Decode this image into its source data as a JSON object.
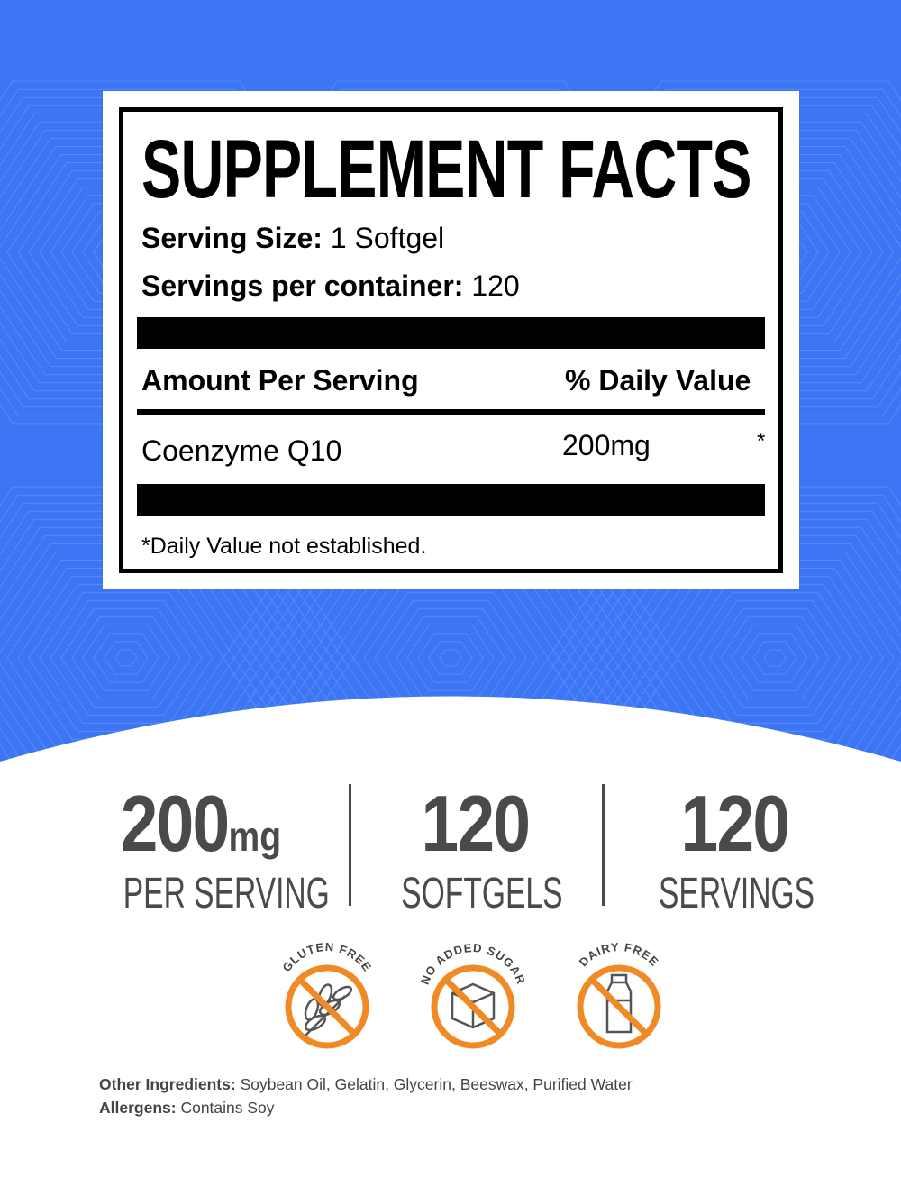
{
  "colors": {
    "background_blue": "#3d76f5",
    "badge_orange": "#f08a24",
    "stat_gray": "#4a4a4a"
  },
  "facts": {
    "title": "SUPPLEMENT FACTS",
    "serving_size_label": "Serving Size:",
    "serving_size_value": "1 Softgel",
    "servings_label": "Servings per container:",
    "servings_value": "120",
    "amount_header": "Amount Per Serving",
    "dv_header": "% Daily Value",
    "ingredient": "Coenzyme Q10",
    "amount": "200mg",
    "dv_mark": "*",
    "footnote": "*Daily Value not established."
  },
  "stats": [
    {
      "value": "200",
      "unit": "mg",
      "label": "PER SERVING"
    },
    {
      "value": "120",
      "unit": "",
      "label": "SOFTGELS"
    },
    {
      "value": "120",
      "unit": "",
      "label": "SERVINGS"
    }
  ],
  "badges": [
    {
      "label": "GLUTEN FREE",
      "icon": "wheat-icon"
    },
    {
      "label": "NO ADDED SUGAR",
      "icon": "sugar-cube-icon"
    },
    {
      "label": "DAIRY FREE",
      "icon": "milk-bottle-icon"
    }
  ],
  "other_ingredients_label": "Other Ingredients:",
  "other_ingredients": "Soybean Oil, Gelatin, Glycerin, Beeswax, Purified Water",
  "allergens_label": "Allergens:",
  "allergens": "Contains Soy"
}
